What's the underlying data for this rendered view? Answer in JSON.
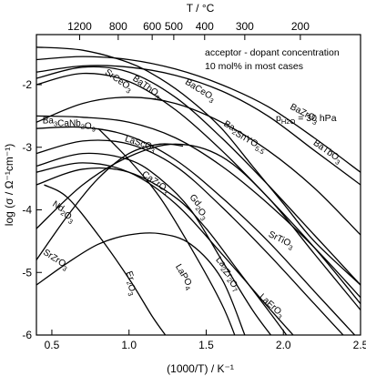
{
  "chart_data": {
    "type": "line",
    "xlabel": "(1000/T) / K⁻¹",
    "ylabel": "log (σ / Ω⁻¹cm⁻¹)",
    "top_axis_label": "T / °C",
    "xlim": [
      0.4,
      2.5
    ],
    "ylim": [
      -6,
      -1.2
    ],
    "x_ticks": [
      0.5,
      1.0,
      1.5,
      2.0,
      2.5
    ],
    "x_tick_labels": [
      "0.5",
      "1.0",
      "1.5",
      "2.0",
      "2.5"
    ],
    "y_ticks": [
      -6,
      -5,
      -4,
      -3,
      -2
    ],
    "y_tick_labels": [
      "-6",
      "-5",
      "-4",
      "-3",
      "-2"
    ],
    "top_ticks": [
      {
        "label": "1200",
        "x": 0.68
      },
      {
        "label": "800",
        "x": 0.93
      },
      {
        "label": "600",
        "x": 1.15
      },
      {
        "label": "500",
        "x": 1.29
      },
      {
        "label": "400",
        "x": 1.49
      },
      {
        "label": "300",
        "x": 1.75
      },
      {
        "label": "200",
        "x": 2.11
      }
    ],
    "annotations": {
      "line1": "acceptor - dopant concentration",
      "line2": "10 mol% in most cases",
      "ph2o": "30 hPa"
    },
    "series": [
      {
        "id": "BaZrO3",
        "label": "BaZrO",
        "sub": "3",
        "label_at": [
          2.04,
          -2.38
        ],
        "label_angle": 28,
        "x": [
          0.4,
          0.7,
          1.0,
          1.3,
          1.6,
          1.9,
          2.2,
          2.5
        ],
        "y": [
          -1.6,
          -1.55,
          -1.6,
          -1.75,
          -2.0,
          -2.35,
          -2.85,
          -3.4
        ]
      },
      {
        "id": "BaTbO3",
        "label": "BaTbO",
        "sub": "3",
        "label_at": [
          2.19,
          -2.95
        ],
        "label_angle": 35,
        "x": [
          0.4,
          0.7,
          1.0,
          1.3,
          1.6,
          1.9,
          2.2,
          2.5
        ],
        "y": [
          -1.8,
          -1.7,
          -1.72,
          -1.85,
          -2.1,
          -2.5,
          -3.05,
          -3.6
        ]
      },
      {
        "id": "BaCeO3",
        "label": "BaCeO",
        "sub": "3",
        "label_at": [
          1.36,
          -1.98
        ],
        "label_angle": 32,
        "x": [
          0.4,
          0.7,
          1.0,
          1.2,
          1.4,
          1.6,
          1.8,
          2.0,
          2.2,
          2.5
        ],
        "y": [
          -1.4,
          -1.45,
          -1.65,
          -1.9,
          -2.25,
          -2.7,
          -3.3,
          -3.9,
          -4.5,
          -5.2
        ]
      },
      {
        "id": "BaThO3",
        "label": "BaThO",
        "sub": "3",
        "label_at": [
          1.02,
          -1.92
        ],
        "label_angle": 35,
        "x": [
          0.4,
          0.7,
          1.0,
          1.3,
          1.6,
          1.9,
          2.2,
          2.5
        ],
        "y": [
          -1.9,
          -1.72,
          -1.8,
          -2.2,
          -2.85,
          -3.6,
          -4.4,
          -5.2
        ]
      },
      {
        "id": "SrCeO3",
        "label": "SrCeO",
        "sub": "3",
        "label_at": [
          0.84,
          -1.82
        ],
        "label_angle": 35,
        "x": [
          0.4,
          0.7,
          1.0,
          1.3,
          1.6,
          1.9,
          2.2,
          2.5
        ],
        "y": [
          -2.0,
          -1.82,
          -1.95,
          -2.4,
          -3.05,
          -3.8,
          -4.6,
          -5.5
        ]
      },
      {
        "id": "Ba2SnYO55",
        "label": "Ba",
        "sub": "2",
        "label2": "SnYO",
        "sub2": "5.5",
        "label_at": [
          1.61,
          -2.65
        ],
        "label_angle": 30,
        "x": [
          0.4,
          0.7,
          1.0,
          1.3,
          1.6,
          1.9,
          2.2,
          2.5
        ],
        "y": [
          -2.6,
          -2.3,
          -2.2,
          -2.3,
          -2.6,
          -3.05,
          -3.65,
          -4.4
        ]
      },
      {
        "id": "Ba3CaNb2O9",
        "label": "Ba",
        "sub": "3",
        "label2": "CaNb",
        "sub2": "2",
        "label3": "O",
        "sub3": "9",
        "label_at": [
          0.44,
          -2.62
        ],
        "label_angle": 0,
        "x": [
          0.4,
          0.7,
          1.0,
          1.3,
          1.6,
          1.9,
          2.2,
          2.5
        ],
        "y": [
          -2.5,
          -2.52,
          -2.6,
          -2.85,
          -3.3,
          -3.9,
          -4.6,
          -5.4
        ]
      },
      {
        "id": "LaScO3",
        "label": "LaScO",
        "sub": "3",
        "label_at": [
          0.97,
          -2.9
        ],
        "label_angle": 18,
        "x": [
          0.4,
          0.7,
          1.0,
          1.3,
          1.6,
          1.9,
          2.2,
          2.5
        ],
        "y": [
          -2.7,
          -2.68,
          -2.82,
          -3.2,
          -3.8,
          -4.5,
          -5.3,
          -6.1
        ]
      },
      {
        "id": "CaZrO3",
        "label": "CaZrO",
        "sub": "3",
        "label_at": [
          1.08,
          -3.45
        ],
        "label_angle": 35,
        "x": [
          0.4,
          0.7,
          1.0,
          1.3,
          1.6,
          1.9,
          2.2,
          2.5
        ],
        "y": [
          -3.1,
          -2.9,
          -2.95,
          -3.3,
          -3.95,
          -4.7,
          -5.5,
          -6.3
        ]
      },
      {
        "id": "Gd2O3",
        "label": "Gd",
        "sub": "2",
        "label2": "O",
        "sub2": "3",
        "label_at": [
          1.39,
          -3.8
        ],
        "label_angle": 50,
        "x": [
          0.4,
          0.7,
          1.0,
          1.2,
          1.4,
          1.6,
          1.8,
          1.95
        ],
        "y": [
          -3.3,
          -3.1,
          -3.2,
          -3.5,
          -4.0,
          -4.8,
          -5.6,
          -6.1
        ]
      },
      {
        "id": "La2Zr2O7",
        "label": "La",
        "sub": "2",
        "label2": "Zr",
        "sub2": "2",
        "label3": "O",
        "sub3": "7",
        "label_at": [
          1.56,
          -4.8
        ],
        "label_angle": 48,
        "x": [
          0.4,
          0.7,
          1.0,
          1.3,
          1.5,
          1.7,
          1.9,
          2.05
        ],
        "y": [
          -3.6,
          -3.35,
          -3.4,
          -3.8,
          -4.3,
          -4.95,
          -5.6,
          -6.1
        ]
      },
      {
        "id": "LaErO3",
        "label": "LaErO",
        "sub": "3",
        "label_at": [
          1.84,
          -5.4
        ],
        "label_angle": 42,
        "x": [
          0.4,
          0.7,
          1.0,
          1.3,
          1.6,
          1.9,
          2.1
        ],
        "y": [
          -3.4,
          -3.25,
          -3.4,
          -3.9,
          -4.7,
          -5.55,
          -6.1
        ]
      },
      {
        "id": "SrTiO3",
        "label": "SrTiO",
        "sub": "3",
        "label_at": [
          1.9,
          -4.42
        ],
        "label_angle": 26,
        "x": [
          0.4,
          0.7,
          1.0,
          1.3,
          1.6,
          1.9,
          2.2,
          2.5
        ],
        "y": [
          -4.3,
          -3.6,
          -3.15,
          -2.95,
          -3.15,
          -3.8,
          -4.7,
          -5.6
        ]
      },
      {
        "id": "Nd2O3",
        "label": "Nd",
        "sub": "2",
        "label2": "O",
        "sub2": "3",
        "label_at": [
          0.5,
          -3.93
        ],
        "label_angle": 33,
        "x": [
          0.4,
          0.6,
          0.8,
          1.0,
          1.2,
          1.35
        ],
        "y": [
          -4.8,
          -4.1,
          -3.5,
          -3.1,
          -2.95,
          -2.98
        ]
      },
      {
        "id": "SrZrO3",
        "label": "SrZrO",
        "sub": "3",
        "label_at": [
          0.44,
          -4.7
        ],
        "label_angle": 33,
        "x": [
          0.4,
          0.6,
          0.8,
          1.0,
          1.2,
          1.4,
          1.6,
          1.75
        ],
        "y": [
          -5.2,
          -4.85,
          -4.55,
          -4.4,
          -4.38,
          -4.55,
          -5.1,
          -6.0
        ]
      },
      {
        "id": "Er2O3",
        "label": "Er",
        "sub": "2",
        "label2": "O",
        "sub2": "3",
        "label_at": [
          0.98,
          -5.0
        ],
        "label_angle": 70,
        "x": [
          0.45,
          0.6,
          0.8,
          1.0,
          1.15,
          1.25
        ],
        "y": [
          -3.6,
          -3.8,
          -4.4,
          -5.1,
          -5.7,
          -6.05
        ]
      },
      {
        "id": "LaPO4",
        "label": "LaPO",
        "sub": "4",
        "label_at": [
          1.3,
          -4.9
        ],
        "label_angle": 60,
        "x": [
          0.8,
          1.0,
          1.2,
          1.4,
          1.6,
          1.7
        ],
        "y": [
          -2.7,
          -3.2,
          -3.8,
          -4.6,
          -5.5,
          -6.1
        ]
      }
    ]
  }
}
